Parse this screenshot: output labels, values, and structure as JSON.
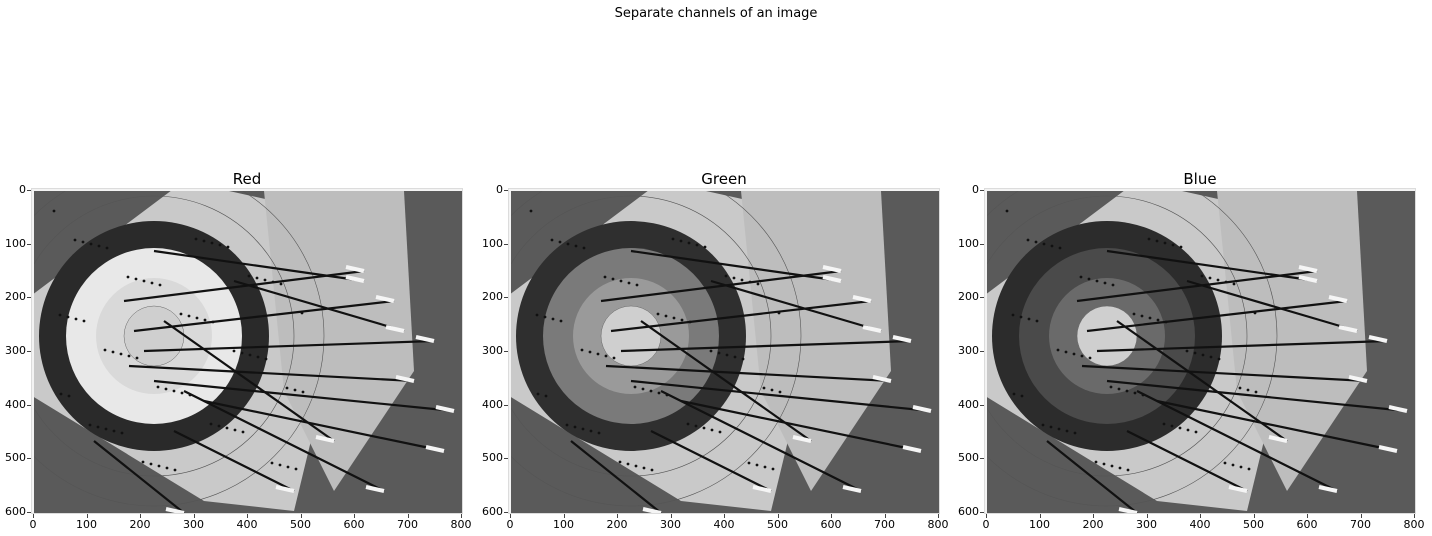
{
  "figure": {
    "suptitle": "Separate channels of an image"
  },
  "panels": [
    {
      "title": "Red",
      "ring_fill": "#2a2a2a",
      "inner_fill": "#e8e8e8",
      "gold_fill": "#d9d9d9"
    },
    {
      "title": "Green",
      "ring_fill": "#2f2f2f",
      "inner_fill": "#7a7a7a",
      "gold_fill": "#9a9a9a"
    },
    {
      "title": "Blue",
      "ring_fill": "#2c2c2c",
      "inner_fill": "#4a4a4a",
      "gold_fill": "#6a6a6a"
    }
  ],
  "axes": {
    "x_ticks": [
      "0",
      "100",
      "200",
      "300",
      "400",
      "500",
      "600",
      "700",
      "800"
    ],
    "y_ticks": [
      "0",
      "100",
      "200",
      "300",
      "400",
      "500",
      "600"
    ],
    "x_range": [
      0,
      800
    ],
    "y_range": [
      0,
      600
    ]
  },
  "colors": {
    "background": "#ffffff",
    "grass": "#5a5a5a",
    "board": "#c9c9c9"
  }
}
